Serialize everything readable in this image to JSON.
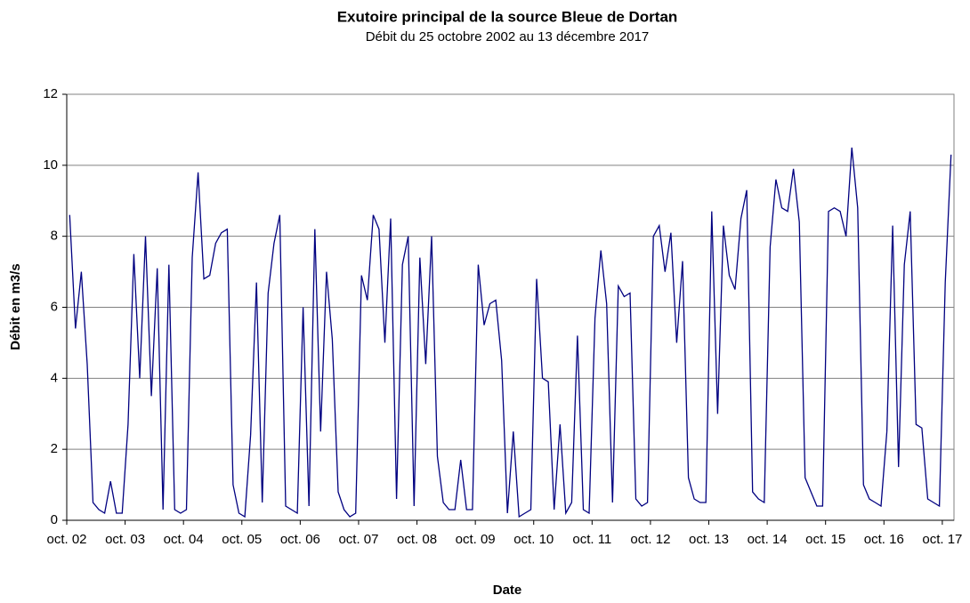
{
  "chart_data": {
    "type": "line",
    "title": "Exutoire principal de la source Bleue de Dortan",
    "subtitle": "Débit du 25 octobre 2002 au 13 décembre 2017",
    "x_label": "Date",
    "y_label": "Débit en m3/s",
    "xlim": [
      2002.75,
      2017.95
    ],
    "ylim": [
      0,
      12
    ],
    "yticks": [
      0,
      2,
      4,
      6,
      8,
      10,
      12
    ],
    "xticks": [
      {
        "value": 2002.75,
        "label": "oct. 02"
      },
      {
        "value": 2003.75,
        "label": "oct. 03"
      },
      {
        "value": 2004.75,
        "label": "oct. 04"
      },
      {
        "value": 2005.75,
        "label": "oct. 05"
      },
      {
        "value": 2006.75,
        "label": "oct. 06"
      },
      {
        "value": 2007.75,
        "label": "oct. 07"
      },
      {
        "value": 2008.75,
        "label": "oct. 08"
      },
      {
        "value": 2009.75,
        "label": "oct. 09"
      },
      {
        "value": 2010.75,
        "label": "oct. 10"
      },
      {
        "value": 2011.75,
        "label": "oct. 11"
      },
      {
        "value": 2012.75,
        "label": "oct. 12"
      },
      {
        "value": 2013.75,
        "label": "oct. 13"
      },
      {
        "value": 2014.75,
        "label": "oct. 14"
      },
      {
        "value": 2015.75,
        "label": "oct. 15"
      },
      {
        "value": 2016.75,
        "label": "oct. 16"
      },
      {
        "value": 2017.75,
        "label": "oct. 17"
      }
    ],
    "grid": true,
    "color": "#000080",
    "x": [
      2002.8,
      2002.9,
      2003.0,
      2003.1,
      2003.2,
      2003.3,
      2003.4,
      2003.5,
      2003.6,
      2003.7,
      2003.8,
      2003.9,
      2004.0,
      2004.1,
      2004.2,
      2004.3,
      2004.4,
      2004.5,
      2004.6,
      2004.7,
      2004.8,
      2004.9,
      2005.0,
      2005.1,
      2005.2,
      2005.3,
      2005.4,
      2005.5,
      2005.6,
      2005.7,
      2005.8,
      2005.9,
      2006.0,
      2006.1,
      2006.2,
      2006.3,
      2006.4,
      2006.5,
      2006.6,
      2006.7,
      2006.8,
      2006.9,
      2007.0,
      2007.1,
      2007.2,
      2007.3,
      2007.4,
      2007.5,
      2007.6,
      2007.7,
      2007.8,
      2007.9,
      2008.0,
      2008.1,
      2008.2,
      2008.3,
      2008.4,
      2008.5,
      2008.6,
      2008.7,
      2008.8,
      2008.9,
      2009.0,
      2009.1,
      2009.2,
      2009.3,
      2009.4,
      2009.5,
      2009.6,
      2009.7,
      2009.8,
      2009.9,
      2010.0,
      2010.1,
      2010.2,
      2010.3,
      2010.4,
      2010.5,
      2010.6,
      2010.7,
      2010.8,
      2010.9,
      2011.0,
      2011.1,
      2011.2,
      2011.3,
      2011.4,
      2011.5,
      2011.6,
      2011.7,
      2011.8,
      2011.9,
      2012.0,
      2012.1,
      2012.2,
      2012.3,
      2012.4,
      2012.5,
      2012.6,
      2012.7,
      2012.8,
      2012.9,
      2013.0,
      2013.1,
      2013.2,
      2013.3,
      2013.4,
      2013.5,
      2013.6,
      2013.7,
      2013.8,
      2013.9,
      2014.0,
      2014.1,
      2014.2,
      2014.3,
      2014.4,
      2014.5,
      2014.6,
      2014.7,
      2014.8,
      2014.9,
      2015.0,
      2015.1,
      2015.2,
      2015.3,
      2015.4,
      2015.5,
      2015.6,
      2015.7,
      2015.8,
      2015.9,
      2016.0,
      2016.1,
      2016.2,
      2016.3,
      2016.4,
      2016.5,
      2016.6,
      2016.7,
      2016.8,
      2016.9,
      2017.0,
      2017.1,
      2017.2,
      2017.3,
      2017.4,
      2017.5,
      2017.6,
      2017.7,
      2017.8,
      2017.9
    ],
    "series": [
      {
        "name": "Débit",
        "values": [
          8.6,
          5.4,
          7.0,
          4.4,
          0.5,
          0.3,
          0.2,
          1.1,
          0.2,
          0.2,
          2.7,
          7.5,
          4.0,
          8.0,
          3.5,
          7.1,
          0.3,
          7.2,
          0.3,
          0.2,
          0.3,
          7.4,
          9.8,
          6.8,
          6.9,
          7.8,
          8.1,
          8.2,
          1.0,
          0.2,
          0.1,
          2.4,
          6.7,
          0.5,
          6.4,
          7.8,
          8.6,
          0.4,
          0.3,
          0.2,
          6.0,
          0.4,
          8.2,
          2.5,
          7.0,
          5.1,
          0.8,
          0.3,
          0.1,
          0.2,
          6.9,
          6.2,
          8.6,
          8.2,
          5.0,
          8.5,
          0.6,
          7.2,
          8.0,
          0.4,
          7.4,
          4.4,
          8.0,
          1.8,
          0.5,
          0.3,
          0.3,
          1.7,
          0.3,
          0.3,
          7.2,
          5.5,
          6.1,
          6.2,
          4.5,
          0.2,
          2.5,
          0.1,
          0.2,
          0.3,
          6.8,
          4.0,
          3.9,
          0.3,
          2.7,
          0.2,
          0.5,
          5.2,
          0.3,
          0.2,
          5.7,
          7.6,
          6.1,
          0.5,
          6.6,
          6.3,
          6.4,
          0.6,
          0.4,
          0.5,
          8.0,
          8.3,
          7.0,
          8.1,
          5.0,
          7.3,
          1.2,
          0.6,
          0.5,
          0.5,
          8.7,
          3.0,
          8.3,
          6.9,
          6.5,
          8.5,
          9.3,
          0.8,
          0.6,
          0.5,
          7.7,
          9.6,
          8.8,
          8.7,
          9.9,
          8.4,
          1.2,
          0.8,
          0.4,
          0.4,
          8.7,
          8.8,
          8.7,
          8.0,
          10.5,
          8.8,
          1.0,
          0.6,
          0.5,
          0.4,
          2.5,
          8.3,
          1.5,
          7.2,
          8.7,
          2.7,
          2.6,
          0.6,
          0.5,
          0.4,
          6.7,
          10.3
        ]
      }
    ]
  }
}
